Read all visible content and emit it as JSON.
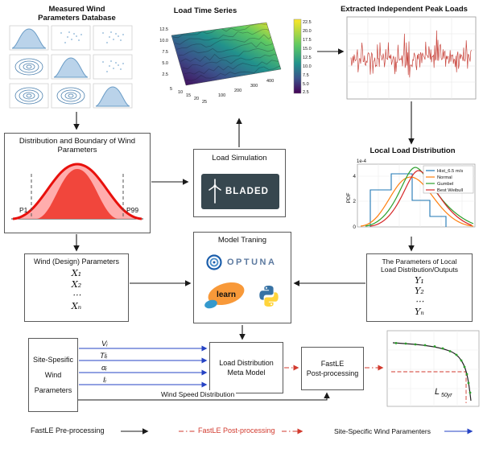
{
  "figure": {
    "pairplot": {
      "title1": "Measured Wind",
      "title2": "Parameters Database"
    },
    "surface": {
      "title": "Load Time Series",
      "colorbar_ticks": [
        "22.5",
        "20.0",
        "17.5",
        "15.0",
        "12.5",
        "10.0",
        "7.5",
        "5.0",
        "2.5"
      ],
      "z_ticks": [
        "12.5",
        "10.0",
        "7.5",
        "5.0",
        "2.5"
      ],
      "y_ticks": [
        "5",
        "10",
        "15",
        "20",
        "25"
      ],
      "x_ticks": [
        "100",
        "200",
        "300",
        "400"
      ]
    },
    "peaks": {
      "title": "Extracted Independent Peak Loads"
    },
    "dist_box": {
      "title1": "Distribution and Boundary of Wind",
      "title2": "Parameters",
      "p1": "P1",
      "p99": "P99"
    },
    "load_sim": {
      "title": "Load Simulation",
      "logo": "BLADED"
    },
    "local_dist": {
      "title": "Local Load Distribution",
      "exp": "1e-4",
      "ylabel": "PDF",
      "y_ticks": [
        "4",
        "2",
        "0"
      ],
      "legend": [
        "Hist_6.5 m/s",
        "Normal",
        "Gumbel",
        "Best Weibull"
      ],
      "legend_colors": [
        "#1f77b4",
        "#ff7f0e",
        "#2ca02c",
        "#d62728"
      ]
    },
    "wind_params": {
      "title": "Wind (Design) Parameters",
      "items": [
        "X₁",
        "X₂",
        "⋯",
        "Xₙ"
      ]
    },
    "model_training": {
      "title": "Model Traning",
      "optuna": "OPTUNA",
      "learn": "learn"
    },
    "y_params": {
      "title1": "The Parameters of Local",
      "title2": "Load Distribution/Outputs",
      "items": [
        "Y₁",
        "Y₂",
        "⋯",
        "Yₙ"
      ]
    },
    "site_box": {
      "line1": "Site-Spesific",
      "line2": "Wind",
      "line3": "Parameters"
    },
    "signals": [
      "Vᵢ",
      "Tiᵢ",
      "αᵢ",
      "Iᵢ"
    ],
    "meta_model": {
      "line1": "Load Distribution",
      "line2": "Meta Model"
    },
    "fastle_post": {
      "line1": "FastLE",
      "line2": "Post-processing"
    },
    "wind_speed_label": "Wind Speed Distribution",
    "final_plot": {
      "label_base": "L",
      "label_sub": "50yr"
    },
    "legend": {
      "pre": "FastLE Pre-processing",
      "post": "FastLE Post-processing",
      "site": "Site-Specific Wind Paramenters"
    }
  },
  "colors": {
    "flow_black": "#1a1a1a",
    "flow_blue": "#2643c4",
    "flow_red": "#d23a2e",
    "bell_red": "#e8100c",
    "bladed_bg": "#37474f",
    "hist_blue": "#1f77b4",
    "normal_orange": "#ff7f0e",
    "gumbel_green": "#2ca02c",
    "weibull_red": "#d62728"
  }
}
